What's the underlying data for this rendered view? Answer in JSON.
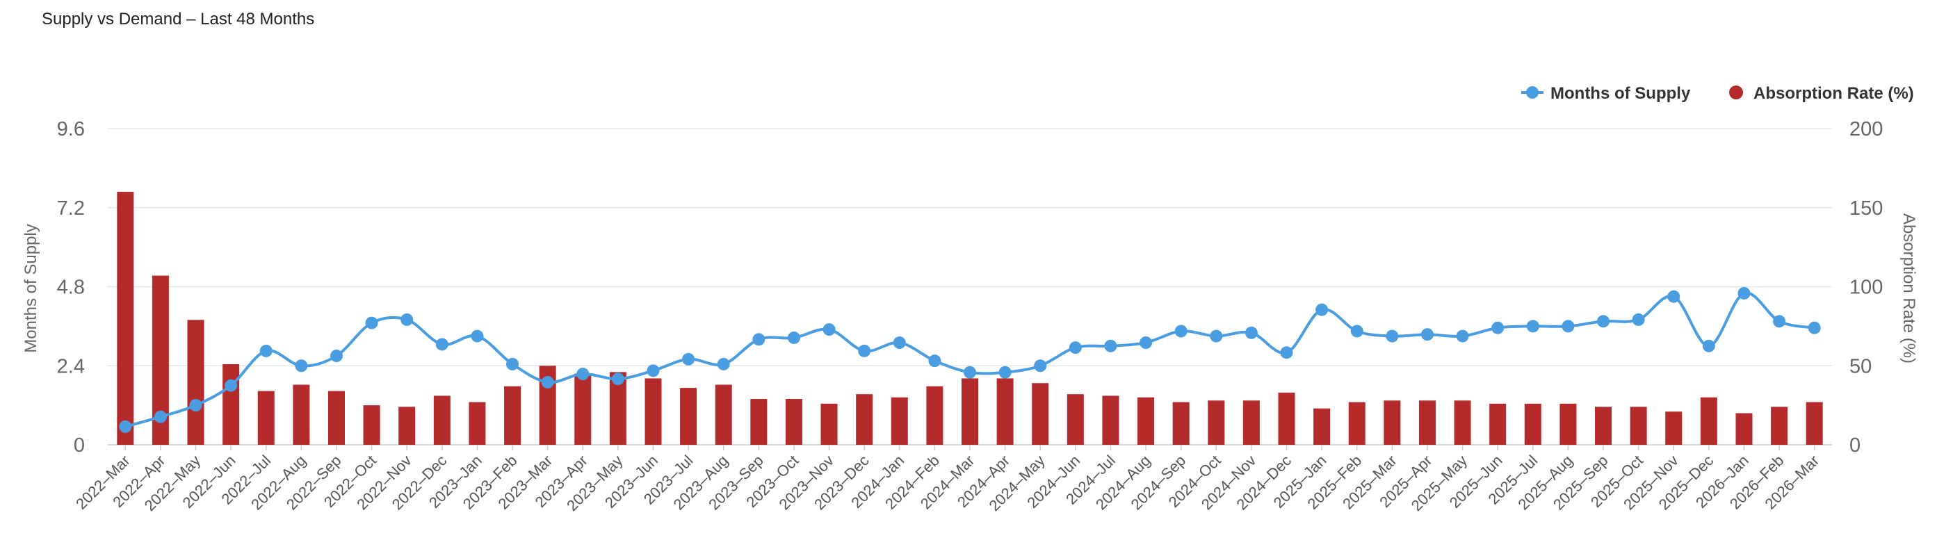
{
  "title": "Supply vs Demand – Last 48 Months",
  "chart_data": {
    "type": "bar+line",
    "title": "Supply vs Demand – Last 48 Months",
    "categories": [
      "2022–Mar",
      "2022–Apr",
      "2022–May",
      "2022–Jun",
      "2022–Jul",
      "2022–Aug",
      "2022–Sep",
      "2022–Oct",
      "2022–Nov",
      "2022–Dec",
      "2023–Jan",
      "2023–Feb",
      "2023–Mar",
      "2023–Apr",
      "2023–May",
      "2023–Jun",
      "2023–Jul",
      "2023–Aug",
      "2023–Sep",
      "2023–Oct",
      "2023–Nov",
      "2023–Dec",
      "2024–Jan",
      "2024–Feb",
      "2024–Mar",
      "2024–Apr",
      "2024–May",
      "2024–Jun",
      "2024–Jul",
      "2024–Aug",
      "2024–Sep",
      "2024–Oct",
      "2024–Nov",
      "2024–Dec",
      "2025–Jan",
      "2025–Feb",
      "2025–Mar",
      "2025–Apr",
      "2025–May",
      "2025–Jun",
      "2025–Jul",
      "2025–Aug",
      "2025–Sep",
      "2025–Oct",
      "2025–Nov",
      "2025–Dec",
      "2026–Jan",
      "2026–Feb",
      "2026–Mar"
    ],
    "series": [
      {
        "name": "Months of Supply",
        "type": "line",
        "axis": "left",
        "color": "#4a9de0",
        "values": [
          0.55,
          0.85,
          1.2,
          1.8,
          2.85,
          2.4,
          2.7,
          3.7,
          3.8,
          3.05,
          3.3,
          2.45,
          1.9,
          2.15,
          2.0,
          2.25,
          2.6,
          2.45,
          3.2,
          3.25,
          3.5,
          2.85,
          3.1,
          2.55,
          2.2,
          2.2,
          2.4,
          2.95,
          3.0,
          3.1,
          3.45,
          3.3,
          3.4,
          2.8,
          4.1,
          3.45,
          3.3,
          3.35,
          3.3,
          3.55,
          3.6,
          3.6,
          3.75,
          3.8,
          4.5,
          3.0,
          4.6,
          3.75,
          3.55
        ]
      },
      {
        "name": "Absorption Rate (%)",
        "type": "bar",
        "axis": "right",
        "color": "#b52a2a",
        "values": [
          160,
          107,
          79,
          51,
          34,
          38,
          34,
          25,
          24,
          31,
          27,
          37,
          50,
          45,
          46,
          42,
          36,
          38,
          29,
          29,
          26,
          32,
          30,
          37,
          42,
          42,
          39,
          32,
          31,
          30,
          27,
          28,
          28,
          33,
          23,
          27,
          28,
          28,
          28,
          26,
          26,
          26,
          24,
          24,
          21,
          30,
          20,
          24,
          27
        ]
      }
    ],
    "y_left": {
      "label": "Months of Supply",
      "ticks": [
        "0",
        "2.4",
        "4.8",
        "7.2",
        "9.6"
      ],
      "range": [
        0,
        9.6
      ]
    },
    "y_right": {
      "label": "Absorption Rate (%)",
      "ticks": [
        "0",
        "50",
        "100",
        "150",
        "200"
      ],
      "range": [
        0,
        200
      ]
    },
    "grid": true,
    "legend_position": "top-right"
  }
}
